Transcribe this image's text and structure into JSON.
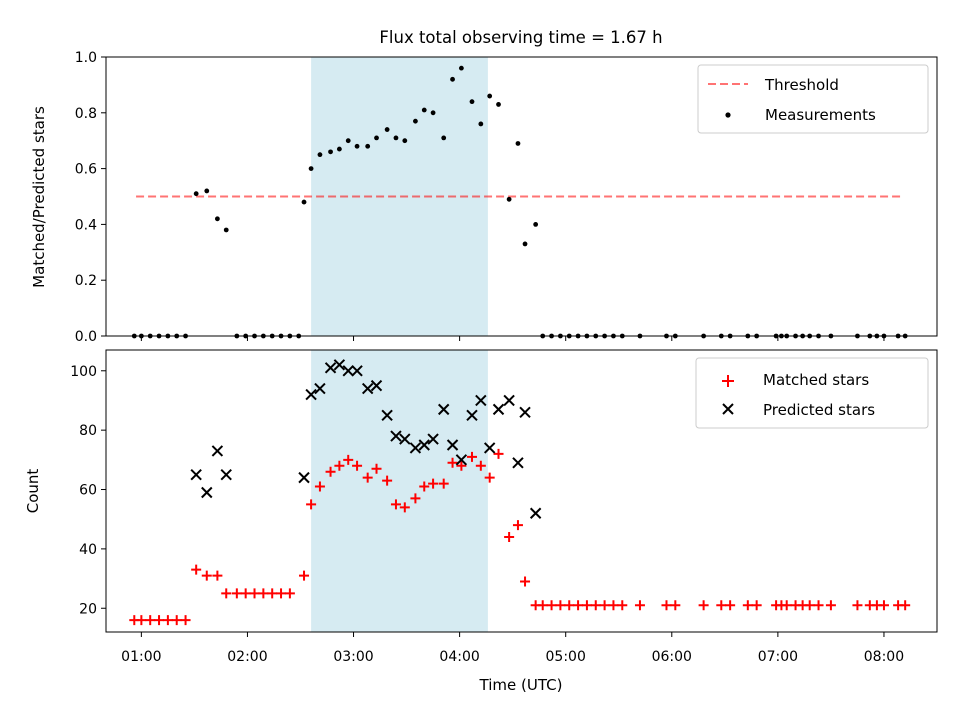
{
  "figure": {
    "title": "Flux total observing time = 1.67 h"
  },
  "chart_data": [
    {
      "type": "scatter",
      "panel": "top",
      "ylabel": "Matched/Predicted stars",
      "xlabel": "",
      "xlim": [
        "00:40",
        "08:30"
      ],
      "ylim": [
        0,
        1.0
      ],
      "yticks": [
        0.0,
        0.2,
        0.4,
        0.6,
        0.8,
        1.0
      ],
      "ytick_labels": [
        "0.0",
        "0.2",
        "0.4",
        "0.6",
        "0.8",
        "1.0"
      ],
      "shaded_span": [
        "02:36",
        "04:16"
      ],
      "shade_color": "#add8e6",
      "legend_position": "upper right",
      "threshold": {
        "name": "Threshold",
        "value": 0.5,
        "x_range": [
          "00:57",
          "08:10"
        ],
        "color": "#ff0000",
        "style": "dashed"
      },
      "series": [
        {
          "name": "Measurements",
          "marker": "dot",
          "color": "#000000",
          "points": [
            [
              "00:56",
              0
            ],
            [
              "01:00",
              0
            ],
            [
              "01:05",
              0
            ],
            [
              "01:10",
              0
            ],
            [
              "01:15",
              0
            ],
            [
              "01:20",
              0
            ],
            [
              "01:25",
              0
            ],
            [
              "01:31",
              0.51
            ],
            [
              "01:37",
              0.52
            ],
            [
              "01:43",
              0.42
            ],
            [
              "01:48",
              0.38
            ],
            [
              "01:54",
              0
            ],
            [
              "01:59",
              0
            ],
            [
              "02:04",
              0
            ],
            [
              "02:09",
              0
            ],
            [
              "02:14",
              0
            ],
            [
              "02:19",
              0
            ],
            [
              "02:24",
              0
            ],
            [
              "02:29",
              0
            ],
            [
              "02:32",
              0.48
            ],
            [
              "02:36",
              0.6
            ],
            [
              "02:41",
              0.65
            ],
            [
              "02:47",
              0.66
            ],
            [
              "02:52",
              0.67
            ],
            [
              "02:57",
              0.7
            ],
            [
              "03:02",
              0.68
            ],
            [
              "03:08",
              0.68
            ],
            [
              "03:13",
              0.71
            ],
            [
              "03:19",
              0.74
            ],
            [
              "03:24",
              0.71
            ],
            [
              "03:29",
              0.7
            ],
            [
              "03:35",
              0.77
            ],
            [
              "03:40",
              0.81
            ],
            [
              "03:45",
              0.8
            ],
            [
              "03:51",
              0.71
            ],
            [
              "03:56",
              0.92
            ],
            [
              "04:01",
              0.96
            ],
            [
              "04:07",
              0.84
            ],
            [
              "04:12",
              0.76
            ],
            [
              "04:17",
              0.86
            ],
            [
              "04:22",
              0.83
            ],
            [
              "04:28",
              0.49
            ],
            [
              "04:33",
              0.69
            ],
            [
              "04:37",
              0.33
            ],
            [
              "04:43",
              0.4
            ],
            [
              "04:47",
              0
            ],
            [
              "04:52",
              0
            ],
            [
              "04:57",
              0
            ],
            [
              "05:02",
              0
            ],
            [
              "05:07",
              0
            ],
            [
              "05:12",
              0
            ],
            [
              "05:17",
              0
            ],
            [
              "05:22",
              0
            ],
            [
              "05:27",
              0
            ],
            [
              "05:32",
              0
            ],
            [
              "05:42",
              0
            ],
            [
              "05:57",
              0
            ],
            [
              "06:02",
              0
            ],
            [
              "06:18",
              0
            ],
            [
              "06:28",
              0
            ],
            [
              "06:33",
              0
            ],
            [
              "06:43",
              0
            ],
            [
              "06:48",
              0
            ],
            [
              "06:59",
              0
            ],
            [
              "07:02",
              0
            ],
            [
              "07:05",
              0
            ],
            [
              "07:10",
              0
            ],
            [
              "07:14",
              0
            ],
            [
              "07:18",
              0
            ],
            [
              "07:23",
              0
            ],
            [
              "07:30",
              0
            ],
            [
              "07:45",
              0
            ],
            [
              "07:52",
              0
            ],
            [
              "07:56",
              0
            ],
            [
              "08:00",
              0
            ],
            [
              "08:08",
              0
            ],
            [
              "08:12",
              0
            ]
          ]
        }
      ]
    },
    {
      "type": "scatter",
      "panel": "bottom",
      "ylabel": "Count",
      "xlabel": "Time (UTC)",
      "xlim": [
        "00:40",
        "08:30"
      ],
      "ylim": [
        12,
        107
      ],
      "yticks": [
        20,
        40,
        60,
        80,
        100
      ],
      "ytick_labels": [
        "20",
        "40",
        "60",
        "80",
        "100"
      ],
      "xticks": [
        "01:00",
        "02:00",
        "03:00",
        "04:00",
        "05:00",
        "06:00",
        "07:00",
        "08:00"
      ],
      "xtick_labels": [
        "01:00",
        "02:00",
        "03:00",
        "04:00",
        "05:00",
        "06:00",
        "07:00",
        "08:00"
      ],
      "shaded_span": [
        "02:36",
        "04:16"
      ],
      "shade_color": "#add8e6",
      "legend_position": "upper right",
      "series": [
        {
          "name": "Matched stars",
          "marker": "plus",
          "color": "#ff0000",
          "points": [
            [
              "00:56",
              16
            ],
            [
              "01:00",
              16
            ],
            [
              "01:05",
              16
            ],
            [
              "01:10",
              16
            ],
            [
              "01:15",
              16
            ],
            [
              "01:20",
              16
            ],
            [
              "01:25",
              16
            ],
            [
              "01:31",
              33
            ],
            [
              "01:37",
              31
            ],
            [
              "01:43",
              31
            ],
            [
              "01:48",
              25
            ],
            [
              "01:54",
              25
            ],
            [
              "01:59",
              25
            ],
            [
              "02:04",
              25
            ],
            [
              "02:09",
              25
            ],
            [
              "02:14",
              25
            ],
            [
              "02:19",
              25
            ],
            [
              "02:24",
              25
            ],
            [
              "02:32",
              31
            ],
            [
              "02:36",
              55
            ],
            [
              "02:41",
              61
            ],
            [
              "02:47",
              66
            ],
            [
              "02:52",
              68
            ],
            [
              "02:57",
              70
            ],
            [
              "03:02",
              68
            ],
            [
              "03:08",
              64
            ],
            [
              "03:13",
              67
            ],
            [
              "03:19",
              63
            ],
            [
              "03:24",
              55
            ],
            [
              "03:29",
              54
            ],
            [
              "03:35",
              57
            ],
            [
              "03:40",
              61
            ],
            [
              "03:45",
              62
            ],
            [
              "03:51",
              62
            ],
            [
              "03:56",
              69
            ],
            [
              "04:01",
              68
            ],
            [
              "04:07",
              71
            ],
            [
              "04:12",
              68
            ],
            [
              "04:17",
              64
            ],
            [
              "04:22",
              72
            ],
            [
              "04:28",
              44
            ],
            [
              "04:33",
              48
            ],
            [
              "04:37",
              29
            ],
            [
              "04:43",
              21
            ],
            [
              "04:47",
              21
            ],
            [
              "04:52",
              21
            ],
            [
              "04:57",
              21
            ],
            [
              "05:02",
              21
            ],
            [
              "05:07",
              21
            ],
            [
              "05:12",
              21
            ],
            [
              "05:17",
              21
            ],
            [
              "05:22",
              21
            ],
            [
              "05:27",
              21
            ],
            [
              "05:32",
              21
            ],
            [
              "05:42",
              21
            ],
            [
              "05:57",
              21
            ],
            [
              "06:02",
              21
            ],
            [
              "06:18",
              21
            ],
            [
              "06:28",
              21
            ],
            [
              "06:33",
              21
            ],
            [
              "06:43",
              21
            ],
            [
              "06:48",
              21
            ],
            [
              "06:59",
              21
            ],
            [
              "07:02",
              21
            ],
            [
              "07:05",
              21
            ],
            [
              "07:10",
              21
            ],
            [
              "07:14",
              21
            ],
            [
              "07:18",
              21
            ],
            [
              "07:23",
              21
            ],
            [
              "07:30",
              21
            ],
            [
              "07:45",
              21
            ],
            [
              "07:52",
              21
            ],
            [
              "07:56",
              21
            ],
            [
              "08:00",
              21
            ],
            [
              "08:08",
              21
            ],
            [
              "08:12",
              21
            ]
          ]
        },
        {
          "name": "Predicted stars",
          "marker": "x",
          "color": "#000000",
          "points": [
            [
              "01:31",
              65
            ],
            [
              "01:37",
              59
            ],
            [
              "01:43",
              73
            ],
            [
              "01:48",
              65
            ],
            [
              "02:32",
              64
            ],
            [
              "02:36",
              92
            ],
            [
              "02:41",
              94
            ],
            [
              "02:47",
              101
            ],
            [
              "02:52",
              102
            ],
            [
              "02:57",
              100
            ],
            [
              "03:02",
              100
            ],
            [
              "03:08",
              94
            ],
            [
              "03:13",
              95
            ],
            [
              "03:19",
              85
            ],
            [
              "03:24",
              78
            ],
            [
              "03:29",
              77
            ],
            [
              "03:35",
              74
            ],
            [
              "03:40",
              75
            ],
            [
              "03:45",
              77
            ],
            [
              "03:51",
              87
            ],
            [
              "03:56",
              75
            ],
            [
              "04:01",
              70
            ],
            [
              "04:07",
              85
            ],
            [
              "04:12",
              90
            ],
            [
              "04:17",
              74
            ],
            [
              "04:22",
              87
            ],
            [
              "04:28",
              90
            ],
            [
              "04:33",
              69
            ],
            [
              "04:37",
              86
            ],
            [
              "04:43",
              52
            ]
          ]
        }
      ]
    }
  ]
}
